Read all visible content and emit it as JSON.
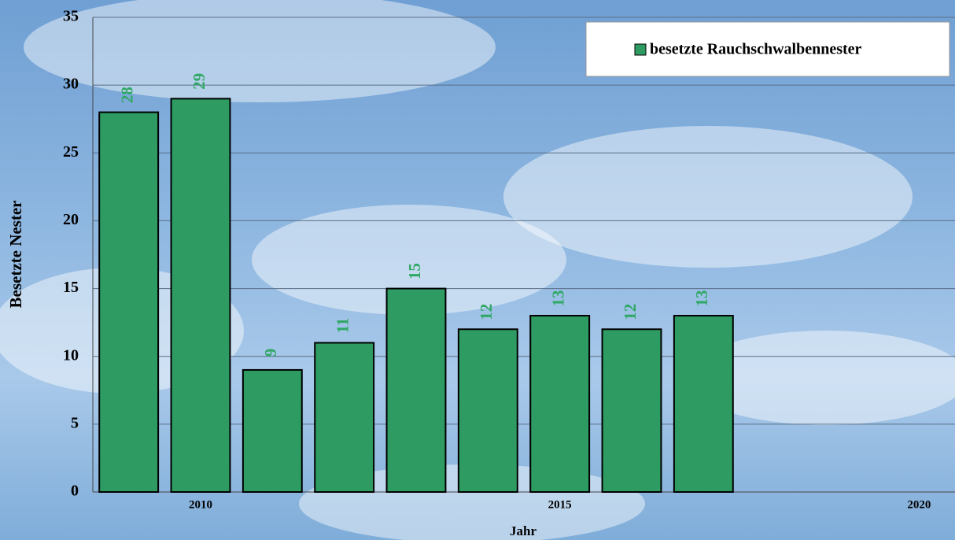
{
  "chart_data": {
    "type": "bar",
    "categories": [
      null,
      "2010",
      null,
      null,
      null,
      null,
      "2015",
      null,
      null,
      null,
      null,
      "2020"
    ],
    "series": [
      {
        "name": "besetzte Rauchschwalbennester",
        "color": "#2e9b63",
        "values": [
          28,
          29,
          9,
          11,
          15,
          12,
          13,
          12,
          13,
          null,
          null,
          null
        ]
      }
    ],
    "ylim": [
      0,
      35
    ],
    "yticks": [
      0,
      5,
      10,
      15,
      20,
      25,
      30,
      35
    ],
    "ylabel": "Besetzte Nester",
    "xlabel": "Jahr",
    "grid": true,
    "legend": "upper right",
    "value_label_color": "#2fa864"
  }
}
